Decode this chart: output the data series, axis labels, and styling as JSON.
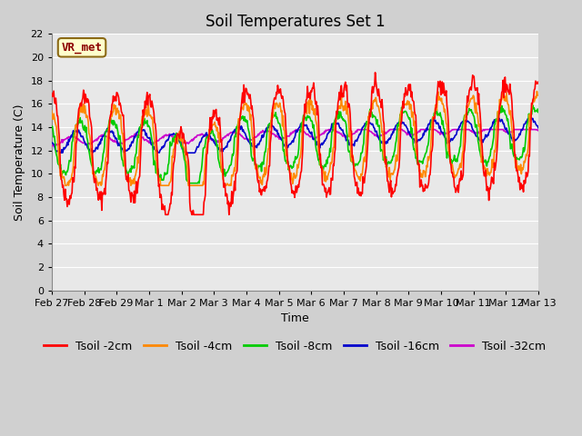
{
  "title": "Soil Temperatures Set 1",
  "xlabel": "Time",
  "ylabel": "Soil Temperature (C)",
  "ylim": [
    0,
    22
  ],
  "yticks": [
    0,
    2,
    4,
    6,
    8,
    10,
    12,
    14,
    16,
    18,
    20,
    22
  ],
  "x_labels": [
    "Feb 27",
    "Feb 28",
    "Feb 29",
    "Mar 1",
    "Mar 2",
    "Mar 3",
    "Mar 4",
    "Mar 5",
    "Mar 6",
    "Mar 7",
    "Mar 8",
    "Mar 9",
    "Mar 10",
    "Mar 11",
    "Mar 12",
    "Mar 13"
  ],
  "annotation_text": "VR_met",
  "annotation_bg": "#ffffcc",
  "annotation_border": "#8B6914",
  "annotation_textcolor": "#8B0000",
  "colors": {
    "Tsoil -2cm": "#ff0000",
    "Tsoil -4cm": "#ff8800",
    "Tsoil -8cm": "#00cc00",
    "Tsoil -16cm": "#0000cc",
    "Tsoil -32cm": "#cc00cc"
  },
  "plot_bg": "#e8e8e8",
  "fig_bg": "#d0d0d0",
  "grid_color": "#ffffff",
  "title_fontsize": 12,
  "label_fontsize": 9,
  "tick_fontsize": 8,
  "legend_fontsize": 9,
  "n_days": 15,
  "ppd": 48
}
